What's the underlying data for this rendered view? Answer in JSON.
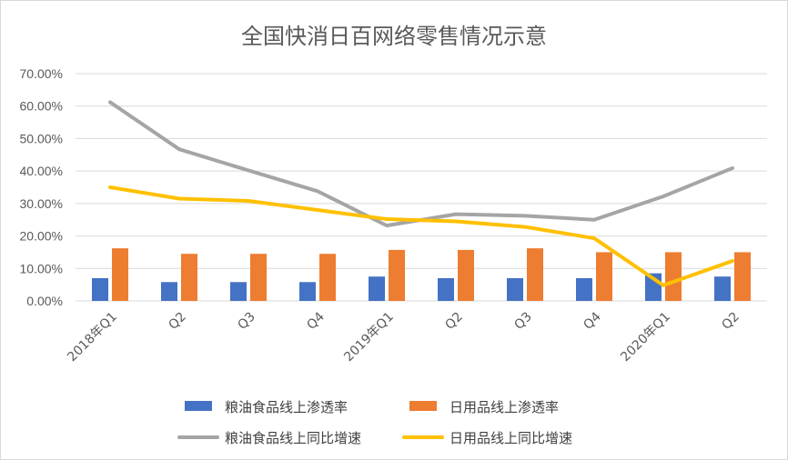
{
  "chart_data": {
    "type": "bar+line",
    "title": "全国快消日百网络零售情况示意",
    "categories": [
      "2018年Q1",
      "Q2",
      "Q3",
      "Q4",
      "2019年Q1",
      "Q2",
      "Q3",
      "Q4",
      "2020年Q1",
      "Q2"
    ],
    "ylim": [
      0,
      70
    ],
    "yticks": [
      "0.00%",
      "10.00%",
      "20.00%",
      "30.00%",
      "40.00%",
      "50.00%",
      "60.00%",
      "70.00%"
    ],
    "grid": true,
    "legend_position": "bottom",
    "series": [
      {
        "name": "粮油食品线上渗透率",
        "kind": "bar",
        "color": "#4472C4",
        "values": [
          7.0,
          5.8,
          5.8,
          5.8,
          7.5,
          7.0,
          7.0,
          7.0,
          8.5,
          7.5
        ]
      },
      {
        "name": "日用品线上渗透率",
        "kind": "bar",
        "color": "#ED7D31",
        "values": [
          16.2,
          14.5,
          14.5,
          14.5,
          15.7,
          15.7,
          16.2,
          15.0,
          15.0,
          15.0
        ]
      },
      {
        "name": "粮油食品线上同比增速",
        "kind": "line",
        "color": "#A5A5A5",
        "values": [
          61.2,
          46.7,
          40.2,
          33.8,
          23.2,
          26.7,
          26.2,
          25.0,
          32.2,
          40.9
        ]
      },
      {
        "name": "日用品线上同比增速",
        "kind": "line",
        "color": "#FFC000",
        "values": [
          35.0,
          31.5,
          30.8,
          28.0,
          25.2,
          24.5,
          22.8,
          19.3,
          4.8,
          12.3
        ]
      }
    ]
  }
}
